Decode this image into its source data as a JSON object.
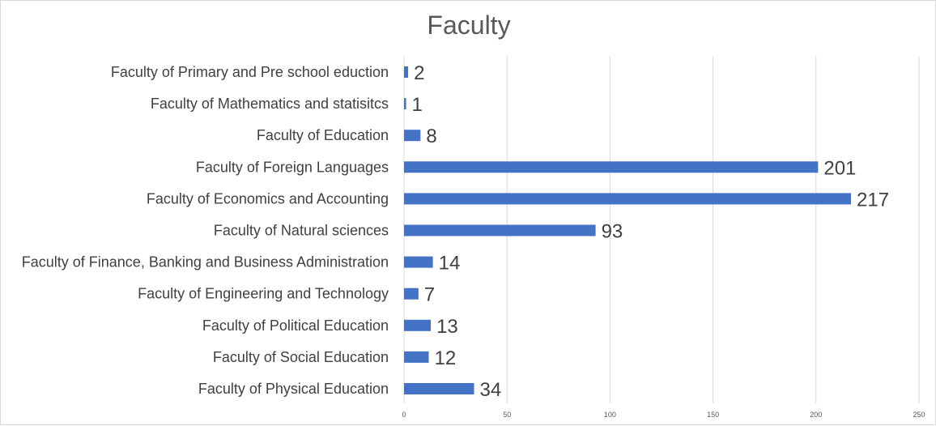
{
  "chart_data": {
    "type": "bar",
    "orientation": "horizontal",
    "title": "Faculty",
    "categories": [
      "Faculty of Primary and Pre school eduction",
      "Faculty of Mathematics and statisitcs",
      "Faculty of Education",
      "Faculty of Foreign Languages",
      "Faculty of Economics and Accounting",
      "Faculty of Natural sciences",
      "Faculty of Finance, Banking and Business Administration",
      "Faculty of Engineering and Technology",
      "Faculty of Political Education",
      "Faculty of Social Education",
      "Faculty of Physical Education"
    ],
    "values": [
      2,
      1,
      8,
      201,
      217,
      93,
      14,
      7,
      13,
      12,
      34
    ],
    "xlim": [
      0,
      250
    ],
    "xticks": [
      0,
      50,
      100,
      150,
      200,
      250
    ],
    "xlabel": "",
    "ylabel": "",
    "grid": "vertical",
    "legend": "none",
    "bar_color": "#4472c4",
    "gridline_color": "#d9d9d9",
    "data_labels": true
  }
}
